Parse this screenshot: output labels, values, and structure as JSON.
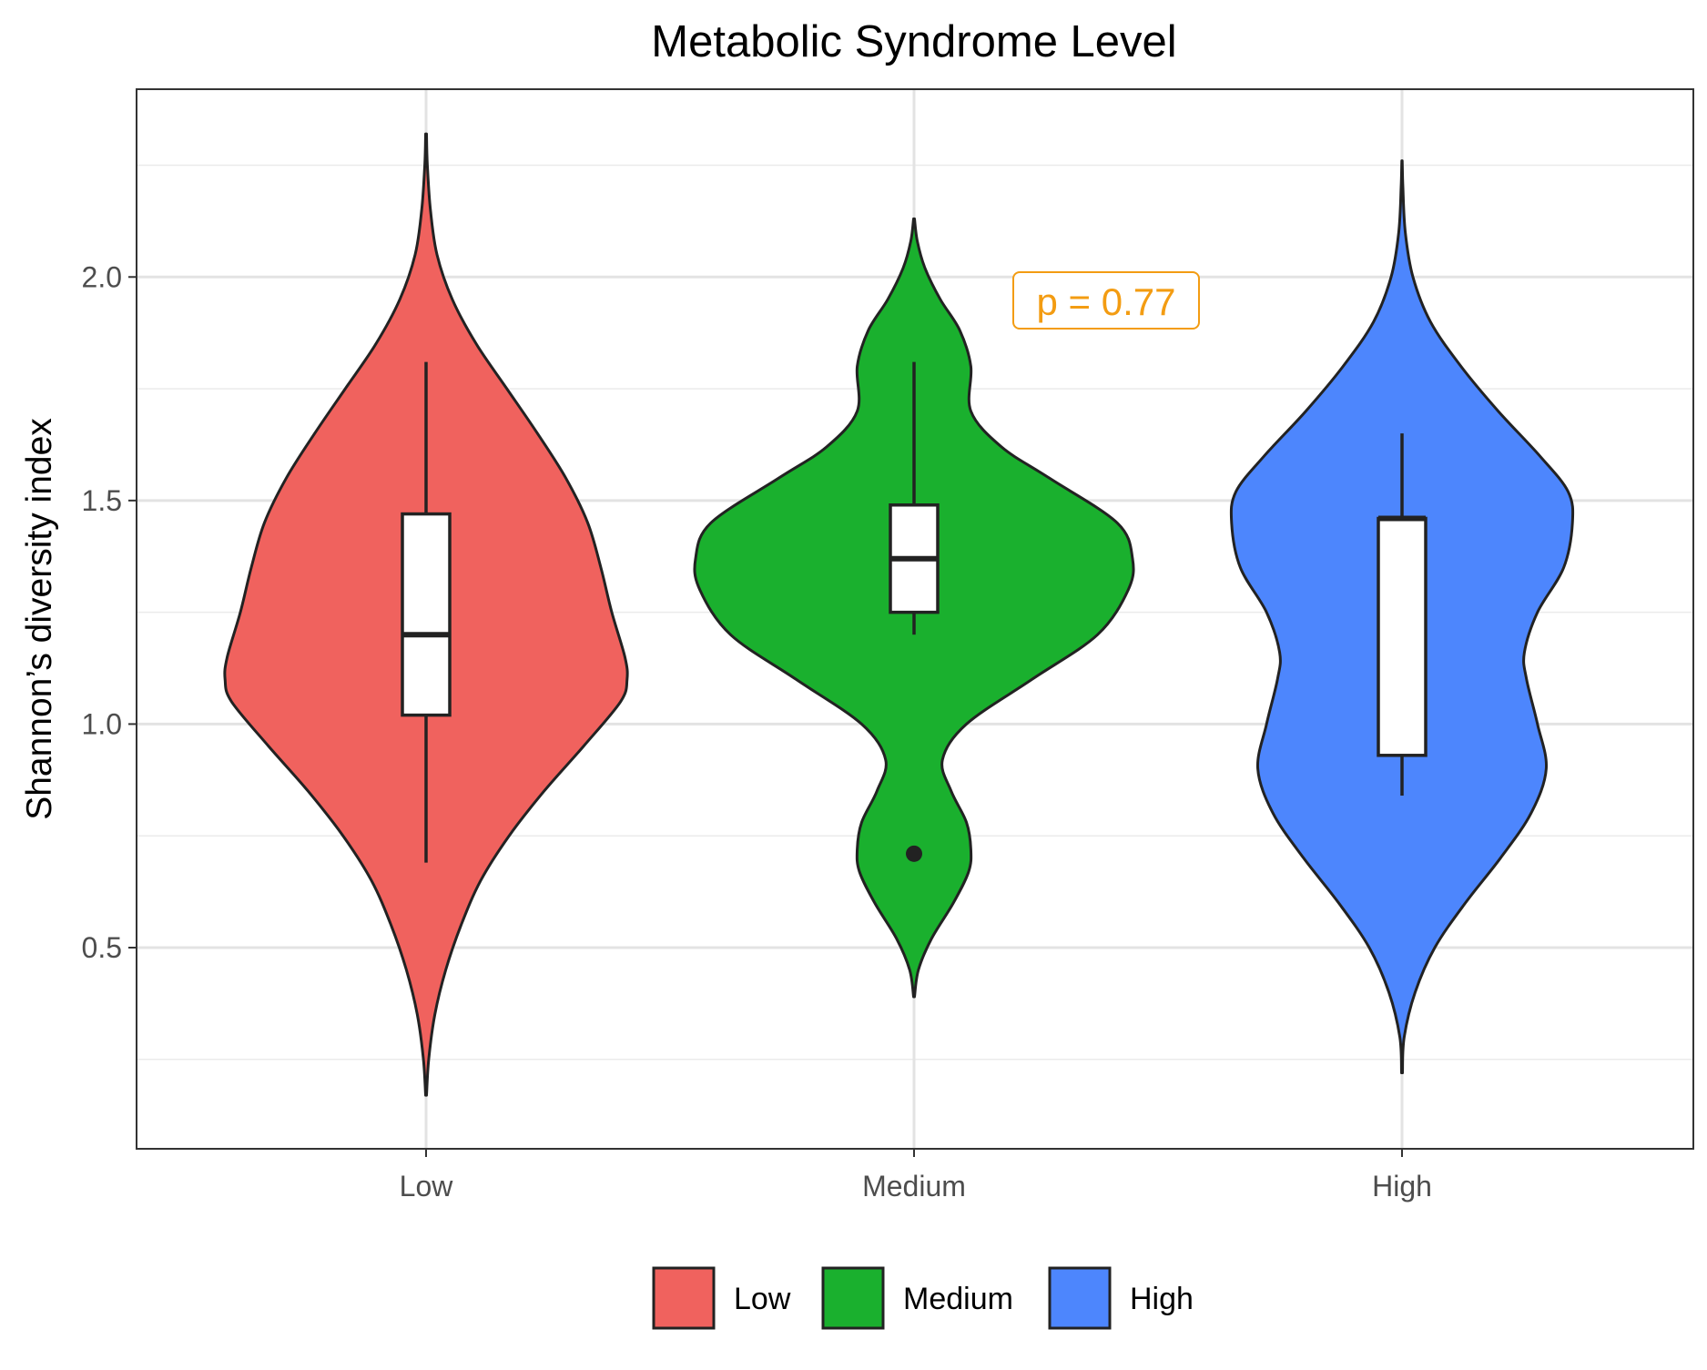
{
  "chart_data": {
    "type": "violin",
    "title": "Metabolic Syndrome Level",
    "xlabel": "",
    "ylabel": "Shannon’s diversity index",
    "categories": [
      "Low",
      "Medium",
      "High"
    ],
    "ylim": [
      0.05,
      2.42
    ],
    "y_ticks": [
      0.5,
      1.0,
      1.5,
      2.0
    ],
    "y_tick_labels": [
      "0.5",
      "1.0",
      "1.5",
      "2.0"
    ],
    "grid": true,
    "legend": {
      "position": "bottom",
      "entries": [
        {
          "label": "Low",
          "color": "#F0625E"
        },
        {
          "label": "Medium",
          "color": "#1AB02E"
        },
        {
          "label": "High",
          "color": "#4D86FD"
        }
      ]
    },
    "annotation": {
      "text": "p = 0.77",
      "color": "#F39C12",
      "x_position": 1.4,
      "y_value": 1.93
    },
    "series": [
      {
        "name": "Low",
        "color": "#F0625E",
        "box": {
          "whisker_low": 0.69,
          "q1": 1.02,
          "median": 1.2,
          "q3": 1.47,
          "whisker_high": 1.81
        },
        "outliers": [],
        "density": [
          [
            0.17,
            0.002
          ],
          [
            0.25,
            0.012
          ],
          [
            0.35,
            0.04
          ],
          [
            0.45,
            0.09
          ],
          [
            0.55,
            0.16
          ],
          [
            0.65,
            0.25
          ],
          [
            0.75,
            0.38
          ],
          [
            0.85,
            0.54
          ],
          [
            0.95,
            0.72
          ],
          [
            1.05,
            0.89
          ],
          [
            1.1,
            0.92
          ],
          [
            1.15,
            0.91
          ],
          [
            1.25,
            0.85
          ],
          [
            1.35,
            0.8
          ],
          [
            1.45,
            0.74
          ],
          [
            1.55,
            0.64
          ],
          [
            1.65,
            0.51
          ],
          [
            1.75,
            0.37
          ],
          [
            1.85,
            0.23
          ],
          [
            1.95,
            0.12
          ],
          [
            2.05,
            0.05
          ],
          [
            2.15,
            0.02
          ],
          [
            2.25,
            0.006
          ],
          [
            2.32,
            0.002
          ]
        ]
      },
      {
        "name": "Medium",
        "color": "#1AB02E",
        "box": {
          "whisker_low": 1.2,
          "q1": 1.25,
          "median": 1.37,
          "q3": 1.49,
          "whisker_high": 1.81
        },
        "outliers": [
          0.71
        ],
        "density": [
          [
            0.39,
            0.002
          ],
          [
            0.45,
            0.02
          ],
          [
            0.52,
            0.08
          ],
          [
            0.6,
            0.18
          ],
          [
            0.67,
            0.25
          ],
          [
            0.72,
            0.26
          ],
          [
            0.78,
            0.24
          ],
          [
            0.85,
            0.17
          ],
          [
            0.92,
            0.13
          ],
          [
            1.0,
            0.24
          ],
          [
            1.1,
            0.54
          ],
          [
            1.2,
            0.84
          ],
          [
            1.3,
            0.98
          ],
          [
            1.37,
            1.0
          ],
          [
            1.45,
            0.93
          ],
          [
            1.55,
            0.62
          ],
          [
            1.62,
            0.4
          ],
          [
            1.7,
            0.26
          ],
          [
            1.8,
            0.26
          ],
          [
            1.88,
            0.21
          ],
          [
            1.95,
            0.12
          ],
          [
            2.02,
            0.05
          ],
          [
            2.08,
            0.015
          ],
          [
            2.13,
            0.002
          ]
        ]
      },
      {
        "name": "High",
        "color": "#4D86FD",
        "box": {
          "whisker_low": 0.84,
          "q1": 0.93,
          "median": 1.46,
          "q3": 1.46,
          "whisker_high": 1.65
        },
        "outliers": [],
        "density": [
          [
            0.22,
            0.002
          ],
          [
            0.3,
            0.01
          ],
          [
            0.4,
            0.06
          ],
          [
            0.5,
            0.15
          ],
          [
            0.6,
            0.29
          ],
          [
            0.7,
            0.45
          ],
          [
            0.8,
            0.59
          ],
          [
            0.9,
            0.66
          ],
          [
            1.0,
            0.62
          ],
          [
            1.1,
            0.57
          ],
          [
            1.16,
            0.56
          ],
          [
            1.25,
            0.62
          ],
          [
            1.35,
            0.74
          ],
          [
            1.45,
            0.78
          ],
          [
            1.52,
            0.76
          ],
          [
            1.6,
            0.63
          ],
          [
            1.7,
            0.44
          ],
          [
            1.8,
            0.27
          ],
          [
            1.9,
            0.13
          ],
          [
            2.0,
            0.05
          ],
          [
            2.1,
            0.015
          ],
          [
            2.2,
            0.004
          ],
          [
            2.26,
            0.001
          ]
        ]
      }
    ]
  }
}
